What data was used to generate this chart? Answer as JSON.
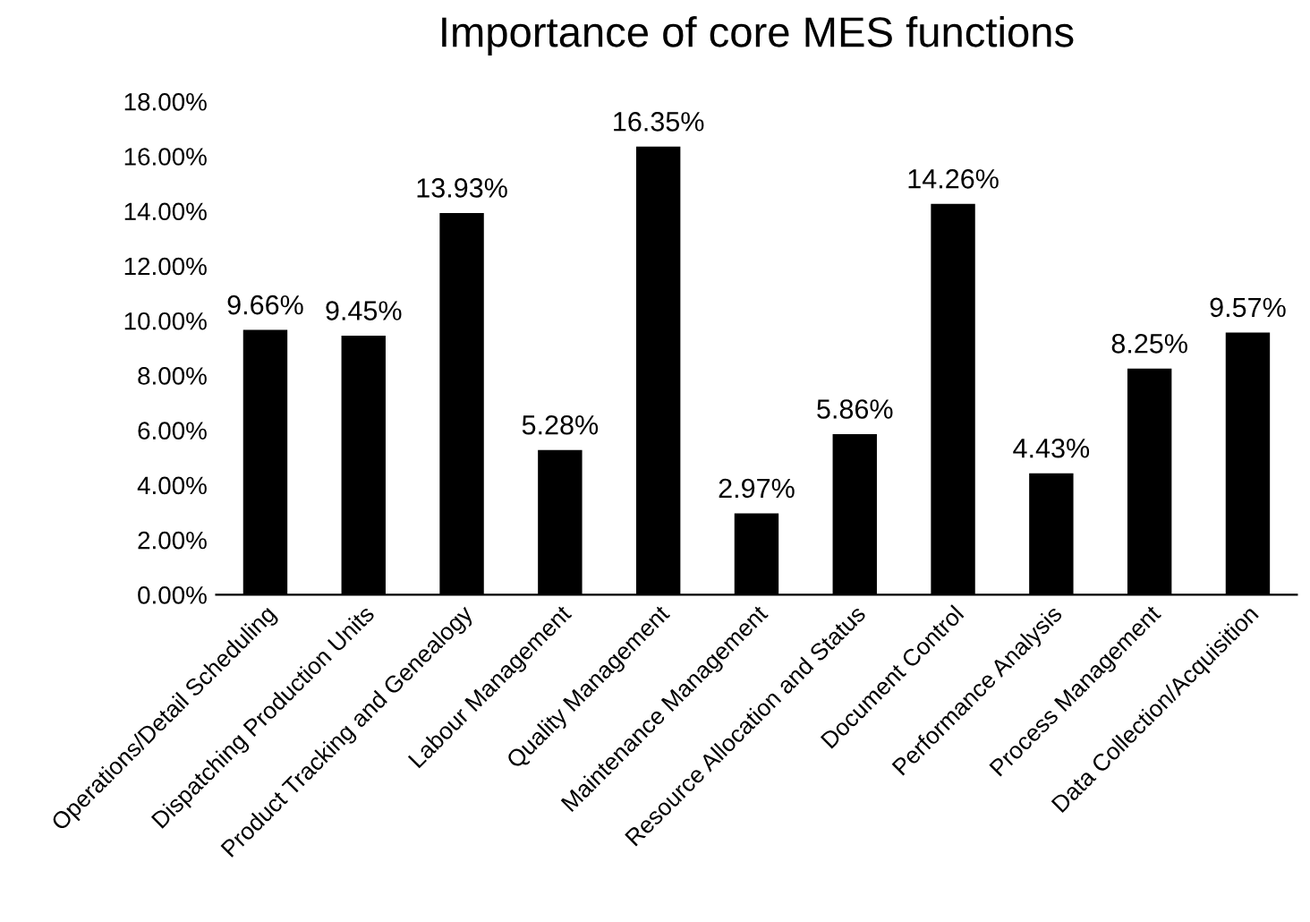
{
  "chart_data": {
    "type": "bar",
    "title": "Importance of core MES functions",
    "categories": [
      "Operations/Detail Scheduling",
      "Dispatching Production Units",
      "Product Tracking and Genealogy",
      "Labour Management",
      "Quality Management",
      "Maintenance Management",
      "Resource Allocation and Status",
      "Document Control",
      "Performance Analysis",
      "Process Management",
      "Data Collection/Acquisition"
    ],
    "values": [
      9.66,
      9.45,
      13.93,
      5.28,
      16.35,
      2.97,
      5.86,
      14.26,
      4.43,
      8.25,
      9.57
    ],
    "value_labels": [
      "9.66%",
      "9.45%",
      "13.93%",
      "5.28%",
      "16.35%",
      "2.97%",
      "5.86%",
      "14.26%",
      "4.43%",
      "8.25%",
      "9.57%"
    ],
    "color": "#000000",
    "ylim": [
      0,
      18
    ],
    "yticks": [
      {
        "value": 0,
        "label": "0.00%"
      },
      {
        "value": 2,
        "label": "2.00%"
      },
      {
        "value": 4,
        "label": "4.00%"
      },
      {
        "value": 6,
        "label": "6.00%"
      },
      {
        "value": 8,
        "label": "8.00%"
      },
      {
        "value": 10,
        "label": "10.00%"
      },
      {
        "value": 12,
        "label": "12.00%"
      },
      {
        "value": 14,
        "label": "14.00%"
      },
      {
        "value": 16,
        "label": "16.00%"
      },
      {
        "value": 18,
        "label": "18.00%"
      }
    ],
    "grid": false,
    "legend": false
  }
}
